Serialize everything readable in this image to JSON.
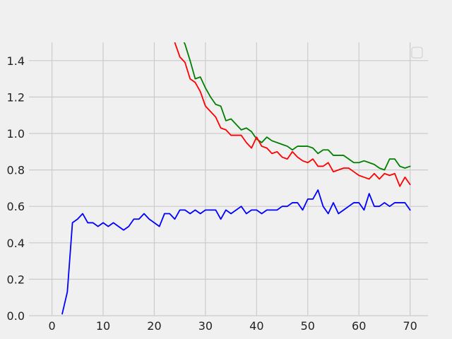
{
  "chart_data": {
    "type": "line",
    "title": "",
    "xlabel": "",
    "ylabel": "",
    "xlim": [
      -4.5,
      73.5
    ],
    "ylim": [
      0,
      1.5
    ],
    "x_ticks": [
      0,
      10,
      20,
      30,
      40,
      50,
      60,
      70
    ],
    "y_ticks": [
      0.0,
      0.2,
      0.4,
      0.6,
      0.8,
      1.0,
      1.2,
      1.4
    ],
    "x_tick_labels": [
      "0",
      "10",
      "20",
      "30",
      "40",
      "50",
      "60",
      "70"
    ],
    "y_tick_labels": [
      "0.0",
      "0.2",
      "0.4",
      "0.6",
      "0.8",
      "1.0",
      "1.2",
      "1.4"
    ],
    "grid": true,
    "legend": {
      "placement": "top-right",
      "entries": []
    },
    "series": [
      {
        "color": "#008000",
        "x": [
          24,
          25,
          26,
          27,
          28,
          29,
          30,
          31,
          32,
          33,
          34,
          35,
          36,
          37,
          38,
          39,
          40,
          41,
          42,
          43,
          44,
          45,
          46,
          47,
          48,
          49,
          50,
          51,
          52,
          53,
          54,
          55,
          56,
          57,
          58,
          59,
          60,
          61,
          62,
          63,
          64,
          65,
          66,
          67,
          68,
          69,
          70
        ],
        "values": [
          1.62,
          1.55,
          1.49,
          1.4,
          1.3,
          1.31,
          1.25,
          1.2,
          1.16,
          1.15,
          1.07,
          1.08,
          1.05,
          1.02,
          1.03,
          1.01,
          0.97,
          0.95,
          0.98,
          0.96,
          0.95,
          0.94,
          0.93,
          0.91,
          0.93,
          0.93,
          0.93,
          0.92,
          0.89,
          0.91,
          0.91,
          0.88,
          0.88,
          0.88,
          0.86,
          0.84,
          0.84,
          0.85,
          0.84,
          0.83,
          0.81,
          0.8,
          0.86,
          0.86,
          0.82,
          0.81,
          0.82
        ]
      },
      {
        "color": "#ff0000",
        "x": [
          24,
          25,
          26,
          27,
          28,
          29,
          30,
          31,
          32,
          33,
          34,
          35,
          36,
          37,
          38,
          39,
          40,
          41,
          42,
          43,
          44,
          45,
          46,
          47,
          48,
          49,
          50,
          51,
          52,
          53,
          54,
          55,
          56,
          57,
          58,
          59,
          60,
          61,
          62,
          63,
          64,
          65,
          66,
          67,
          68,
          69,
          70
        ],
        "values": [
          1.5,
          1.42,
          1.39,
          1.3,
          1.28,
          1.23,
          1.15,
          1.12,
          1.09,
          1.03,
          1.02,
          0.99,
          0.99,
          0.99,
          0.95,
          0.92,
          0.98,
          0.93,
          0.92,
          0.89,
          0.9,
          0.87,
          0.86,
          0.9,
          0.87,
          0.85,
          0.84,
          0.86,
          0.82,
          0.82,
          0.84,
          0.79,
          0.8,
          0.81,
          0.81,
          0.79,
          0.77,
          0.76,
          0.75,
          0.78,
          0.75,
          0.78,
          0.77,
          0.78,
          0.71,
          0.76,
          0.72
        ]
      },
      {
        "color": "#0000ff",
        "x": [
          2,
          3,
          4,
          5,
          6,
          7,
          8,
          9,
          10,
          11,
          12,
          13,
          14,
          15,
          16,
          17,
          18,
          19,
          20,
          21,
          22,
          23,
          24,
          25,
          26,
          27,
          28,
          29,
          30,
          31,
          32,
          33,
          34,
          35,
          36,
          37,
          38,
          39,
          40,
          41,
          42,
          43,
          44,
          45,
          46,
          47,
          48,
          49,
          50,
          51,
          52,
          53,
          54,
          55,
          56,
          57,
          58,
          59,
          60,
          61,
          62,
          63,
          64,
          65,
          66,
          67,
          68,
          69,
          70
        ],
        "values": [
          0.01,
          0.13,
          0.51,
          0.53,
          0.56,
          0.51,
          0.51,
          0.49,
          0.51,
          0.49,
          0.51,
          0.49,
          0.47,
          0.49,
          0.53,
          0.53,
          0.56,
          0.53,
          0.51,
          0.49,
          0.56,
          0.56,
          0.53,
          0.58,
          0.58,
          0.56,
          0.58,
          0.56,
          0.58,
          0.58,
          0.58,
          0.53,
          0.58,
          0.56,
          0.58,
          0.6,
          0.56,
          0.58,
          0.58,
          0.56,
          0.58,
          0.58,
          0.58,
          0.6,
          0.6,
          0.62,
          0.62,
          0.58,
          0.64,
          0.64,
          0.69,
          0.6,
          0.56,
          0.62,
          0.56,
          0.58,
          0.6,
          0.62,
          0.62,
          0.58,
          0.67,
          0.6,
          0.6,
          0.62,
          0.6,
          0.62,
          0.62,
          0.62,
          0.58
        ]
      }
    ]
  }
}
